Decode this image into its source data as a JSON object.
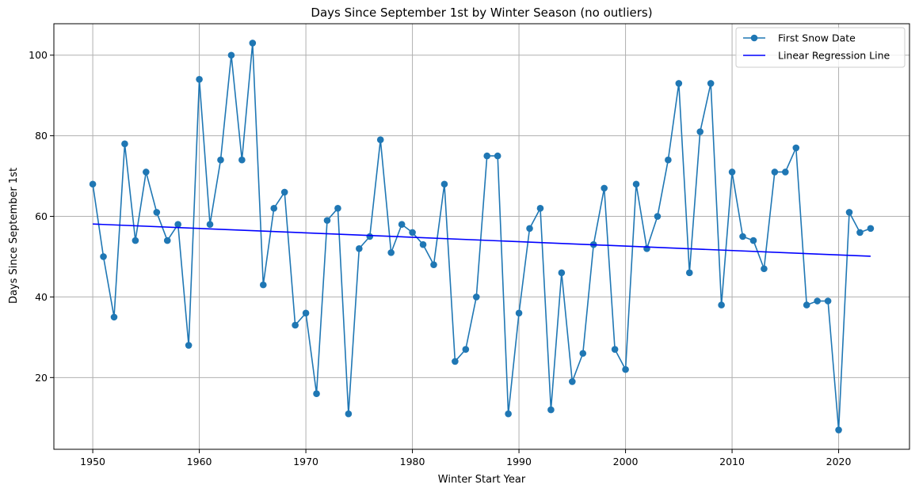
{
  "chart_data": {
    "type": "line",
    "title": "Days Since September 1st by Winter Season (no outliers)",
    "xlabel": "Winter Start Year",
    "ylabel": "Days Since September 1st",
    "xlim": [
      1946.35,
      2026.65
    ],
    "ylim": [
      2.2,
      107.8
    ],
    "x_ticks": [
      1950,
      1960,
      1970,
      1980,
      1990,
      2000,
      2010,
      2020
    ],
    "y_ticks": [
      20,
      40,
      60,
      80,
      100
    ],
    "grid": true,
    "legend_position": "upper right",
    "series": [
      {
        "name": "First Snow Date",
        "style": "line-with-markers",
        "color": "#1f77b4",
        "x": [
          1950,
          1951,
          1952,
          1953,
          1954,
          1955,
          1956,
          1957,
          1958,
          1959,
          1960,
          1961,
          1962,
          1963,
          1964,
          1965,
          1966,
          1967,
          1968,
          1969,
          1970,
          1971,
          1972,
          1973,
          1974,
          1975,
          1976,
          1977,
          1978,
          1979,
          1980,
          1981,
          1982,
          1983,
          1984,
          1985,
          1986,
          1987,
          1988,
          1989,
          1990,
          1991,
          1992,
          1993,
          1994,
          1995,
          1996,
          1997,
          1998,
          1999,
          2000,
          2001,
          2002,
          2003,
          2004,
          2005,
          2006,
          2007,
          2008,
          2009,
          2010,
          2011,
          2012,
          2013,
          2014,
          2015,
          2016,
          2017,
          2018,
          2019,
          2020,
          2021,
          2022,
          2023
        ],
        "y": [
          68,
          50,
          35,
          78,
          54,
          71,
          61,
          54,
          58,
          28,
          94,
          58,
          74,
          100,
          74,
          103,
          43,
          62,
          66,
          33,
          36,
          16,
          59,
          62,
          11,
          52,
          55,
          79,
          51,
          58,
          56,
          53,
          48,
          68,
          24,
          27,
          40,
          75,
          75,
          11,
          36,
          57,
          62,
          12,
          46,
          19,
          26,
          53,
          67,
          27,
          22,
          68,
          52,
          60,
          74,
          93,
          46,
          81,
          93,
          38,
          71,
          55,
          54,
          47,
          71,
          71,
          77,
          38,
          39,
          39,
          7,
          61,
          56,
          57
        ]
      },
      {
        "name": "Linear Regression Line",
        "style": "line",
        "color": "#0000ff",
        "x": [
          1950,
          2023
        ],
        "y": [
          58.1,
          50.1
        ]
      }
    ]
  }
}
